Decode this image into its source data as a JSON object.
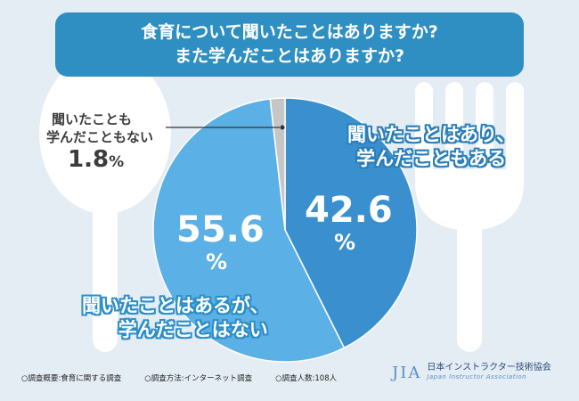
{
  "title_lines": [
    "食育について聞いたことはありますか?",
    "また学んだことはありますか?"
  ],
  "chart_data": {
    "type": "pie",
    "title": "食育について聞いたことはありますか? また学んだことはありますか?",
    "slices": [
      {
        "label": "聞いたことはあり、学んだこともある",
        "value": 42.6,
        "color": "#3a8fce"
      },
      {
        "label": "聞いたことはあるが、学んだことはない",
        "value": 55.6,
        "color": "#5bb0e5"
      },
      {
        "label": "聞いたことも学んだこともない",
        "value": 1.8,
        "color": "#c6c6c6"
      }
    ],
    "start_angle_deg": 0,
    "direction": "clockwise"
  },
  "labels": {
    "s0_line1": "聞いたことはあり、",
    "s0_line2": "学んだこともある",
    "s0_pct": "42.6",
    "s1_line1": "聞いたことはあるが、",
    "s1_line2": "学んだことはない",
    "s1_pct": "55.6",
    "s2_line1": "聞いたことも",
    "s2_line2": "学んだこともない",
    "s2_pct": "1.8",
    "percent_sign": "%"
  },
  "footer": {
    "note1": "○調査概要:食育に関する調査",
    "note2": "○調査方法:インターネット調査",
    "note3": "○調査人数:108人"
  },
  "brand": {
    "mark": "JIA",
    "name": "日本インストラクター技術協会",
    "sub": "Japan Instructor Association"
  },
  "colors": {
    "background": "#e4ecf4",
    "title_bg": "#2f8fc2",
    "decor": "#ffffff"
  }
}
